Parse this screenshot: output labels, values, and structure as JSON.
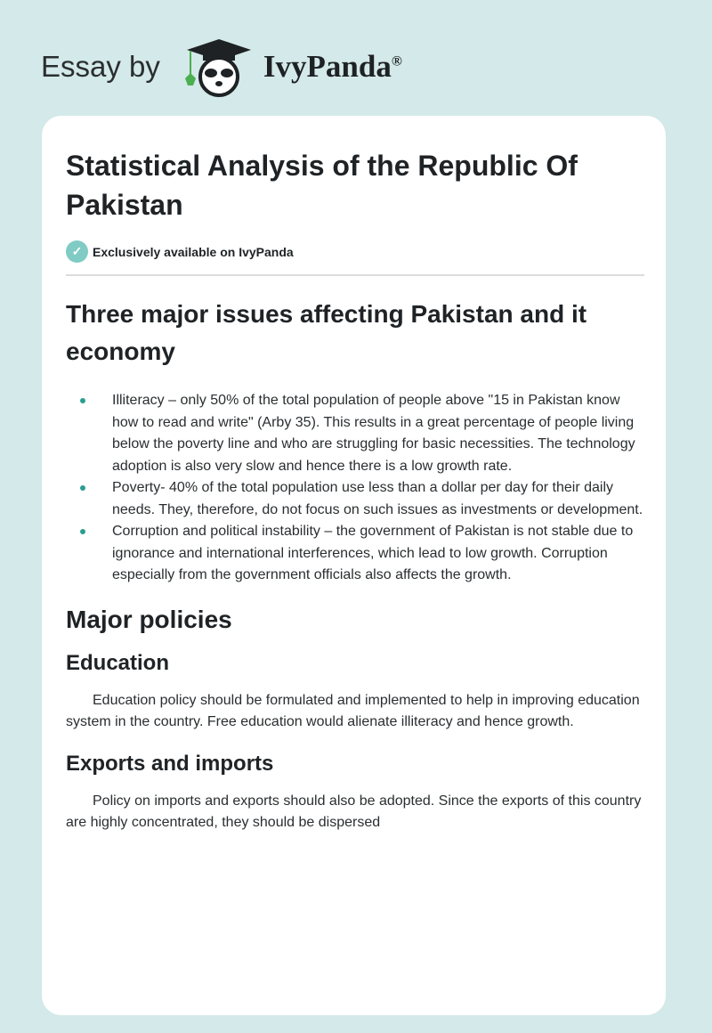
{
  "header": {
    "essay_by": "Essay by",
    "brand": "IvyPanda",
    "registered": "®"
  },
  "colors": {
    "background": "#d4e9e9",
    "accent": "#80cbc4",
    "bullet": "#2a9d8f"
  },
  "article": {
    "title": "Statistical Analysis of the Republic Of Pakistan",
    "badge": {
      "icon": "check-icon",
      "text": "Exclusively available on IvyPanda"
    },
    "section1": {
      "heading": "Three major issues affecting Pakistan and it economy",
      "bullets": [
        "Illiteracy – only 50% of the total population of people above \"15 in Pakistan know how to read and write\" (Arby 35). This results in a great percentage of people living below the poverty line and who are struggling for basic necessities. The technology adoption is also very slow and hence there is a low growth rate.",
        "Poverty- 40% of the total population use less than a dollar per day for their daily needs. They, therefore, do not focus on such issues as investments or development.",
        "Corruption and political instability – the government of Pakistan is not stable due to ignorance and international interferences, which lead to low growth. Corruption especially from the government officials also affects the growth."
      ]
    },
    "section2": {
      "heading": "Major policies",
      "education": {
        "heading": "Education",
        "text": "Education policy should be formulated and implemented to help in improving education system in the country. Free education would alienate illiteracy and hence growth."
      },
      "trade": {
        "heading": "Exports and imports",
        "text": "Policy on imports and exports should also be adopted. Since the exports of this country are highly concentrated, they should be dispersed"
      }
    }
  }
}
